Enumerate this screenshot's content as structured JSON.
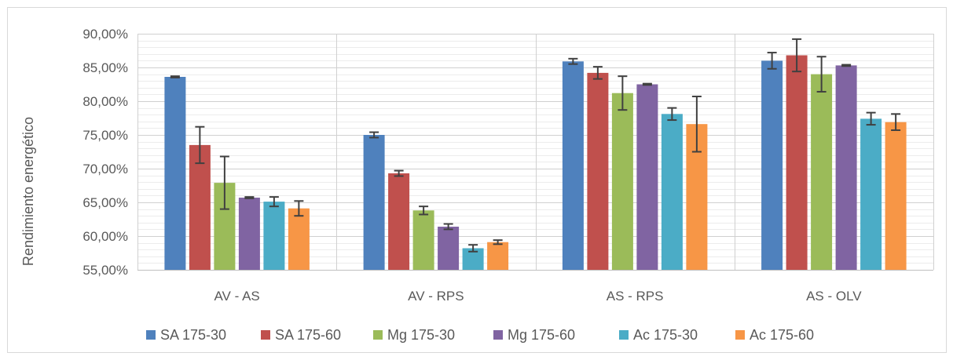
{
  "chart_data": {
    "type": "bar",
    "title": "",
    "xlabel": "",
    "ylabel": "Rendimiento energético",
    "ylim": [
      0.55,
      0.9
    ],
    "ytick_values": [
      0.55,
      0.6,
      0.65,
      0.7,
      0.75,
      0.8,
      0.85,
      0.9
    ],
    "ytick_labels": [
      "55,00%",
      "60,00%",
      "65,00%",
      "70,00%",
      "75,00%",
      "80,00%",
      "85,00%",
      "90,00%"
    ],
    "grid": true,
    "legend_position": "bottom",
    "error_bars": true,
    "categories": [
      "AV - AS",
      "AV - RPS",
      "AS - RPS",
      "AS - OLV"
    ],
    "series": [
      {
        "name": "SA 175-30",
        "color": "#4F81BD",
        "values": [
          0.836,
          0.75,
          0.859,
          0.86
        ],
        "errors": [
          0.001,
          0.004,
          0.004,
          0.012
        ]
      },
      {
        "name": "SA 175-60",
        "color": "#C0504D",
        "values": [
          0.735,
          0.693,
          0.842,
          0.868
        ],
        "errors": [
          0.027,
          0.004,
          0.009,
          0.024
        ]
      },
      {
        "name": "Mg 175-30",
        "color": "#9BBB59",
        "values": [
          0.679,
          0.638,
          0.812,
          0.84
        ],
        "errors": [
          0.039,
          0.006,
          0.025,
          0.026
        ]
      },
      {
        "name": "Mg 175-60",
        "color": "#8064A2",
        "values": [
          0.657,
          0.614,
          0.825,
          0.853
        ],
        "errors": [
          0.001,
          0.004,
          0.001,
          0.001
        ]
      },
      {
        "name": "Ac 175-30",
        "color": "#4BACC6",
        "values": [
          0.651,
          0.582,
          0.781,
          0.774
        ],
        "errors": [
          0.007,
          0.005,
          0.009,
          0.009
        ]
      },
      {
        "name": "Ac 175-60",
        "color": "#F79646",
        "values": [
          0.641,
          0.591,
          0.766,
          0.769
        ],
        "errors": [
          0.011,
          0.003,
          0.041,
          0.012
        ]
      }
    ]
  }
}
